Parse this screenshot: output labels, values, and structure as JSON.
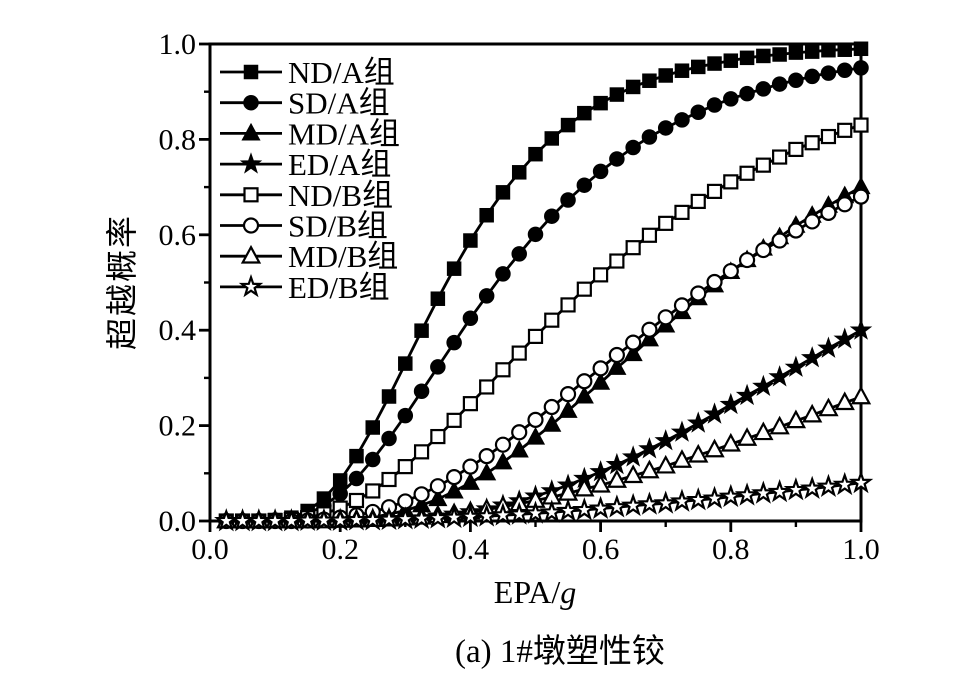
{
  "page": {
    "background": "#ffffff",
    "foreground": "#000000"
  },
  "caption": "(a) 1#墩塑性铰",
  "chart_data": {
    "type": "line",
    "title": "",
    "xlabel_roman": "EPA/",
    "xlabel_italic": "g",
    "ylabel": "超越概率",
    "xlim": [
      0,
      1
    ],
    "ylim": [
      0,
      1
    ],
    "grid": false,
    "legend_position": "top-left-inside",
    "line_color": "#000000",
    "background_color": "#ffffff",
    "x_ticks": {
      "major": [
        0,
        0.2,
        0.4,
        0.6,
        0.8,
        1.0
      ],
      "labels": [
        "0.0",
        "0.2",
        "0.4",
        "0.6",
        "0.8",
        "1.0"
      ],
      "minor": [
        0.1,
        0.3,
        0.5,
        0.7,
        0.9
      ]
    },
    "y_ticks": {
      "major": [
        0,
        0.2,
        0.4,
        0.6,
        0.8,
        1.0
      ],
      "labels": [
        "0.0",
        "0.2",
        "0.4",
        "0.6",
        "0.8",
        "1.0"
      ],
      "minor": [
        0.1,
        0.3,
        0.5,
        0.7,
        0.9
      ]
    },
    "x": [
      0.025,
      0.05,
      0.075,
      0.1,
      0.125,
      0.15,
      0.175,
      0.2,
      0.225,
      0.25,
      0.275,
      0.3,
      0.325,
      0.35,
      0.375,
      0.4,
      0.425,
      0.45,
      0.475,
      0.5,
      0.525,
      0.55,
      0.575,
      0.6,
      0.625,
      0.65,
      0.675,
      0.7,
      0.725,
      0.75,
      0.775,
      0.8,
      0.825,
      0.85,
      0.875,
      0.9,
      0.925,
      0.95,
      0.975,
      1.0
    ],
    "series": [
      {
        "name": "ND/A组",
        "marker": "square",
        "fill": "filled",
        "values": [
          0,
          0,
          0,
          0.002,
          0.007,
          0.021,
          0.047,
          0.085,
          0.136,
          0.196,
          0.261,
          0.33,
          0.399,
          0.466,
          0.529,
          0.588,
          0.641,
          0.689,
          0.731,
          0.769,
          0.802,
          0.83,
          0.855,
          0.876,
          0.894,
          0.91,
          0.923,
          0.934,
          0.944,
          0.952,
          0.959,
          0.965,
          0.971,
          0.975,
          0.978,
          0.982,
          0.984,
          0.987,
          0.988,
          0.99
        ]
      },
      {
        "name": "SD/A组",
        "marker": "circle",
        "fill": "filled",
        "values": [
          0,
          0,
          0,
          0.002,
          0.006,
          0.015,
          0.032,
          0.057,
          0.089,
          0.129,
          0.173,
          0.221,
          0.272,
          0.323,
          0.374,
          0.425,
          0.472,
          0.518,
          0.56,
          0.601,
          0.639,
          0.673,
          0.704,
          0.733,
          0.759,
          0.783,
          0.805,
          0.824,
          0.841,
          0.857,
          0.872,
          0.885,
          0.896,
          0.906,
          0.916,
          0.924,
          0.932,
          0.939,
          0.945,
          0.95
        ]
      },
      {
        "name": "MD/A组",
        "marker": "triangle",
        "fill": "filled",
        "values": [
          0,
          0,
          0,
          0,
          0,
          0,
          0.001,
          0.002,
          0.004,
          0.008,
          0.014,
          0.022,
          0.033,
          0.046,
          0.062,
          0.08,
          0.1,
          0.123,
          0.148,
          0.175,
          0.202,
          0.231,
          0.261,
          0.29,
          0.321,
          0.35,
          0.381,
          0.41,
          0.438,
          0.467,
          0.494,
          0.522,
          0.547,
          0.571,
          0.595,
          0.619,
          0.64,
          0.661,
          0.681,
          0.7
        ]
      },
      {
        "name": "ED/A组",
        "marker": "star",
        "fill": "filled",
        "values": [
          0,
          0,
          0,
          0,
          0,
          0,
          0,
          0,
          0.001,
          0.001,
          0.002,
          0.004,
          0.006,
          0.01,
          0.014,
          0.019,
          0.025,
          0.033,
          0.042,
          0.052,
          0.063,
          0.075,
          0.089,
          0.103,
          0.118,
          0.134,
          0.151,
          0.168,
          0.186,
          0.205,
          0.224,
          0.244,
          0.263,
          0.282,
          0.302,
          0.322,
          0.342,
          0.362,
          0.381,
          0.4
        ]
      },
      {
        "name": "ND/B组",
        "marker": "square",
        "fill": "open",
        "values": [
          0,
          0,
          0,
          0.001,
          0.003,
          0.007,
          0.015,
          0.027,
          0.043,
          0.063,
          0.087,
          0.114,
          0.145,
          0.177,
          0.211,
          0.246,
          0.281,
          0.317,
          0.352,
          0.387,
          0.421,
          0.453,
          0.486,
          0.516,
          0.545,
          0.573,
          0.599,
          0.624,
          0.647,
          0.67,
          0.691,
          0.711,
          0.729,
          0.746,
          0.763,
          0.779,
          0.793,
          0.806,
          0.819,
          0.83
        ]
      },
      {
        "name": "SD/B组",
        "marker": "circle",
        "fill": "open",
        "values": [
          0,
          0,
          0,
          0,
          0,
          0.001,
          0.003,
          0.007,
          0.012,
          0.019,
          0.029,
          0.041,
          0.056,
          0.073,
          0.092,
          0.114,
          0.136,
          0.16,
          0.186,
          0.212,
          0.239,
          0.266,
          0.293,
          0.32,
          0.348,
          0.374,
          0.401,
          0.427,
          0.452,
          0.477,
          0.501,
          0.524,
          0.547,
          0.568,
          0.588,
          0.609,
          0.628,
          0.646,
          0.664,
          0.68
        ]
      },
      {
        "name": "MD/B组",
        "marker": "triangle",
        "fill": "open",
        "values": [
          0,
          0,
          0,
          0,
          0,
          0,
          0,
          0.001,
          0.002,
          0.003,
          0.004,
          0.006,
          0.008,
          0.011,
          0.015,
          0.019,
          0.024,
          0.03,
          0.036,
          0.043,
          0.05,
          0.058,
          0.067,
          0.075,
          0.085,
          0.095,
          0.105,
          0.115,
          0.127,
          0.138,
          0.149,
          0.161,
          0.173,
          0.185,
          0.197,
          0.21,
          0.222,
          0.235,
          0.248,
          0.26
        ]
      },
      {
        "name": "ED/B组",
        "marker": "star",
        "fill": "open",
        "values": [
          0,
          0,
          0,
          0,
          0,
          0.001,
          0.001,
          0.001,
          0.002,
          0.002,
          0.003,
          0.004,
          0.005,
          0.006,
          0.007,
          0.009,
          0.01,
          0.012,
          0.014,
          0.016,
          0.018,
          0.021,
          0.023,
          0.026,
          0.029,
          0.032,
          0.035,
          0.037,
          0.041,
          0.044,
          0.047,
          0.051,
          0.054,
          0.058,
          0.061,
          0.065,
          0.068,
          0.072,
          0.076,
          0.08
        ]
      }
    ]
  }
}
